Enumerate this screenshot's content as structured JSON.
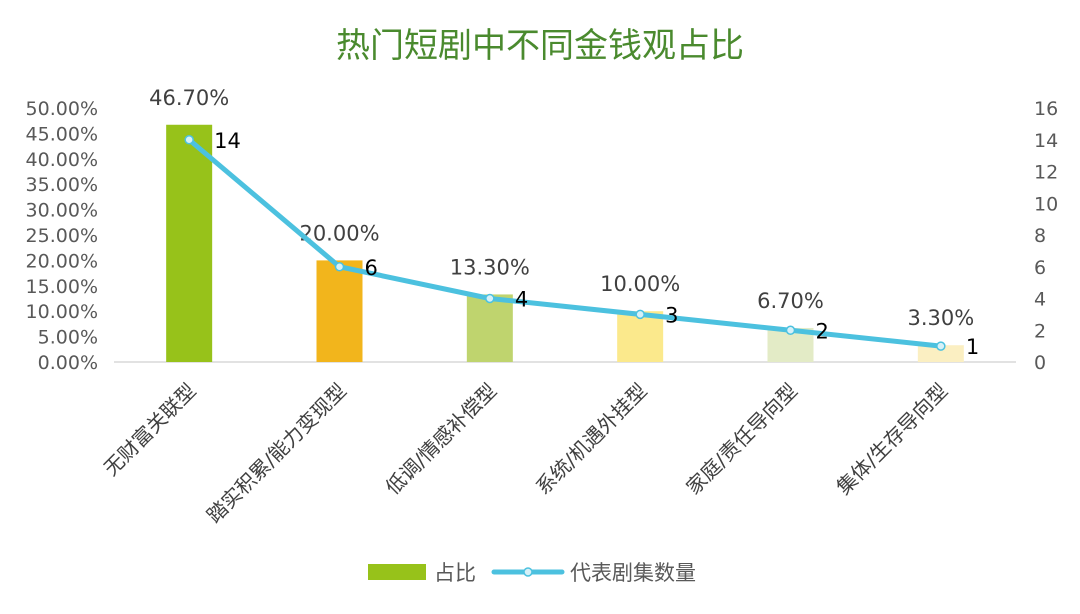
{
  "chart_data": {
    "type": "bar",
    "title": "热门短剧中不同金钱观占比",
    "categories": [
      "无财富关联型",
      "踏实积累/能力变现型",
      "低调/情感补偿型",
      "系统/机遇外挂型",
      "家庭/责任导向型",
      "集体/生存导向型"
    ],
    "series": [
      {
        "name": "占比",
        "type": "bar",
        "axis": "left",
        "values": [
          46.7,
          20.0,
          13.3,
          10.0,
          6.7,
          3.3
        ],
        "labels": [
          "46.70%",
          "20.00%",
          "13.30%",
          "10.00%",
          "6.70%",
          "3.30%"
        ],
        "colors": [
          "#97c21a",
          "#f2b51c",
          "#bfd46e",
          "#fbe98c",
          "#e3ebc6",
          "#fbefc2"
        ]
      },
      {
        "name": "代表剧集数量",
        "type": "line",
        "axis": "right",
        "values": [
          14,
          6,
          4,
          3,
          2,
          1
        ],
        "labels": [
          "14",
          "6",
          "4",
          "3",
          "2",
          "1"
        ],
        "color": "#4cc1df"
      }
    ],
    "y_left": {
      "ylim": [
        0,
        50
      ],
      "ticks": [
        "0.00%",
        "5.00%",
        "10.00%",
        "15.00%",
        "20.00%",
        "25.00%",
        "30.00%",
        "35.00%",
        "40.00%",
        "45.00%",
        "50.00%"
      ]
    },
    "y_right": {
      "ylim": [
        0,
        16
      ],
      "ticks": [
        "0",
        "2",
        "4",
        "6",
        "8",
        "10",
        "12",
        "14",
        "16"
      ]
    },
    "grid": false,
    "legend": "bottom-center",
    "legend_bar_color": "#97c21a"
  }
}
